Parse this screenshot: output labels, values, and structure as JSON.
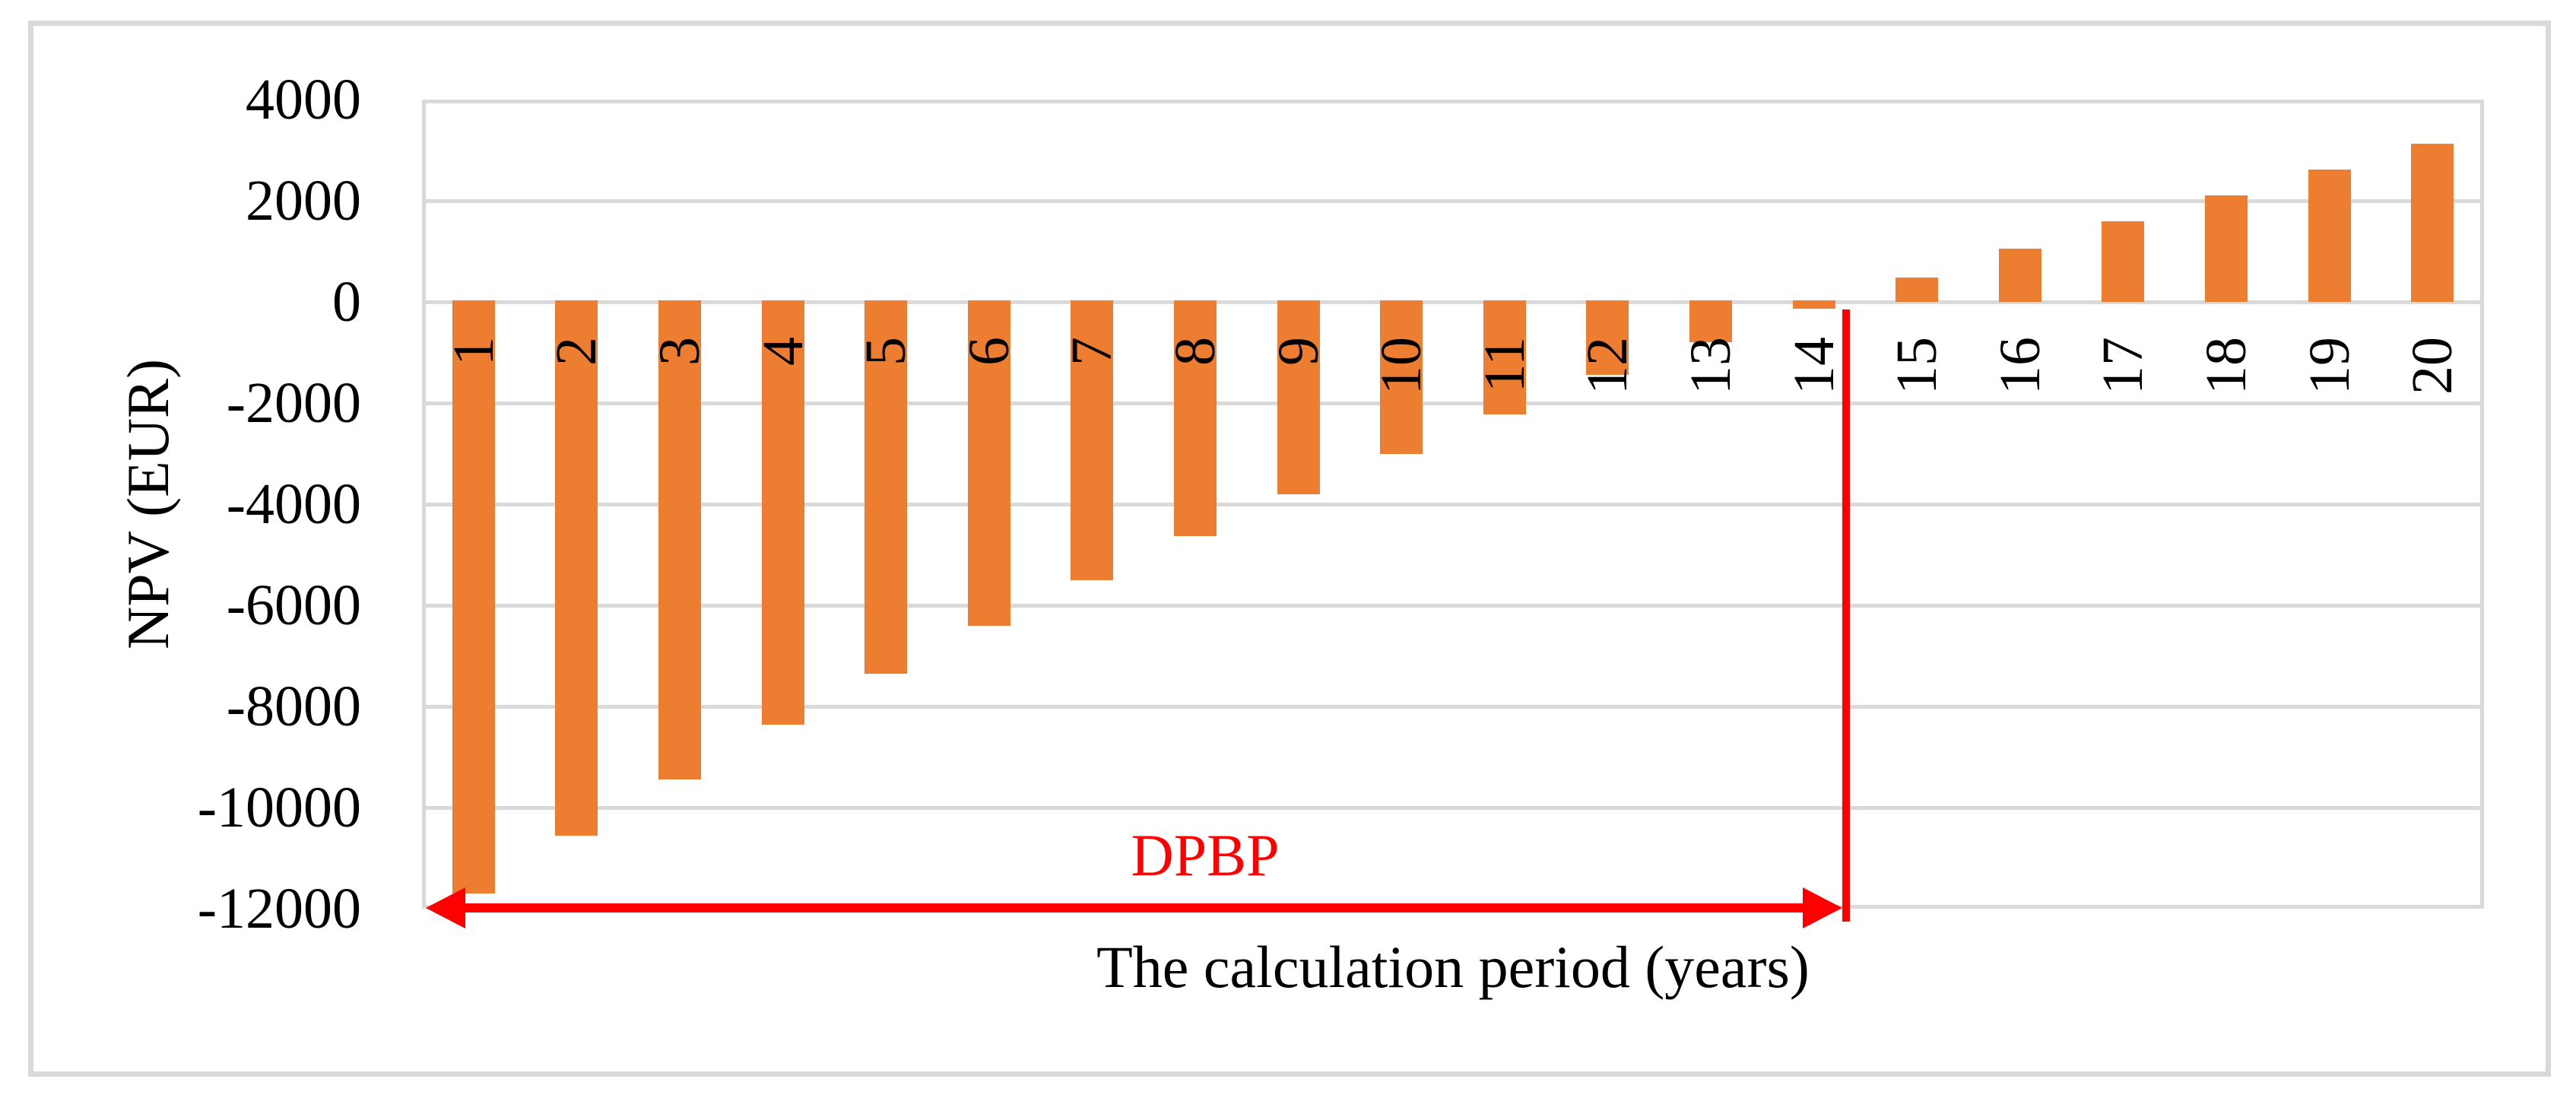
{
  "figure": {
    "background_color": "#FFFFFF",
    "outer_border_color": "#D9D9D9"
  },
  "chart_data": {
    "type": "bar",
    "title": "",
    "xlabel": "The calculation period (years)",
    "ylabel": "NPV (EUR)",
    "categories": [
      "1",
      "2",
      "3",
      "4",
      "5",
      "6",
      "7",
      "8",
      "9",
      "10",
      "11",
      "12",
      "13",
      "14",
      "15",
      "16",
      "17",
      "18",
      "19",
      "20"
    ],
    "values": [
      -11700,
      -10550,
      -9450,
      -8360,
      -7350,
      -6400,
      -5500,
      -4630,
      -3800,
      -3000,
      -2230,
      -1440,
      -800,
      -130,
      480,
      1050,
      1600,
      2110,
      2620,
      3130
    ],
    "ylim": [
      -12000,
      4000
    ],
    "yticks": [
      4000,
      2000,
      0,
      -2000,
      -4000,
      -6000,
      -8000,
      -10000,
      -12000
    ],
    "grid": "horizontal",
    "gridline_color": "#D9D9D9",
    "plot_border_color": "#D9D9D9",
    "bar_color": "#ED7D31",
    "bar_label_color": "#000000",
    "bar_label_rotation_deg": -90,
    "legend": "none",
    "annotations": {
      "label": "DPBP",
      "color": "#FF0000",
      "description_arrow": "horizontal double-headed red arrow along the -12000 gridline from the plot left edge to a red vertical line",
      "vline_between_categories": [
        "14",
        "15"
      ]
    }
  }
}
